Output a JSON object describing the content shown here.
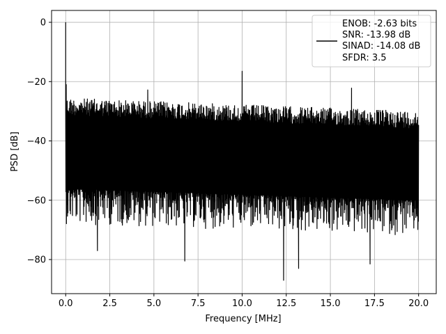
{
  "chart_data": {
    "type": "line",
    "xlabel": "Frequency [MHz]",
    "ylabel": "PSD [dB]",
    "xlim": [
      -0.8,
      21.0
    ],
    "ylim": [
      -91.5,
      4.0
    ],
    "grid": true,
    "x_ticks": [
      0.0,
      2.5,
      5.0,
      7.5,
      10.0,
      12.5,
      15.0,
      17.5,
      20.0
    ],
    "x_tick_labels": [
      "0.0",
      "2.5",
      "5.0",
      "7.5",
      "10.0",
      "12.5",
      "15.0",
      "17.5",
      "20.0"
    ],
    "y_ticks": [
      0,
      -20,
      -40,
      -60,
      -80
    ],
    "y_tick_labels": [
      "0",
      "−20",
      "−40",
      "−60",
      "−80"
    ],
    "legend": {
      "position": "upper right",
      "entries": [
        "ENOB: -2.63 bits",
        "SNR: -13.98 dB",
        "SINAD: -14.08 dB",
        "SFDR: 3.5"
      ]
    },
    "series": [
      {
        "color": "#000000",
        "x_range": [
          0.0,
          20.0
        ],
        "noise_ceiling_db": [
          -25.5,
          -30.0
        ],
        "noise_floor_db": [
          -56,
          -60
        ],
        "notable_points": [
          {
            "x": 0.0,
            "y": 0.0
          },
          {
            "x": 0.03,
            "y": -21.0
          },
          {
            "x": 4.65,
            "y": -22.8
          },
          {
            "x": 10.0,
            "y": -16.5
          },
          {
            "x": 16.2,
            "y": -22.2
          },
          {
            "x": 1.8,
            "y": -77.0
          },
          {
            "x": 6.75,
            "y": -80.5
          },
          {
            "x": 12.35,
            "y": -87.0
          },
          {
            "x": 13.2,
            "y": -83.0
          },
          {
            "x": 17.25,
            "y": -81.5
          }
        ]
      }
    ]
  }
}
